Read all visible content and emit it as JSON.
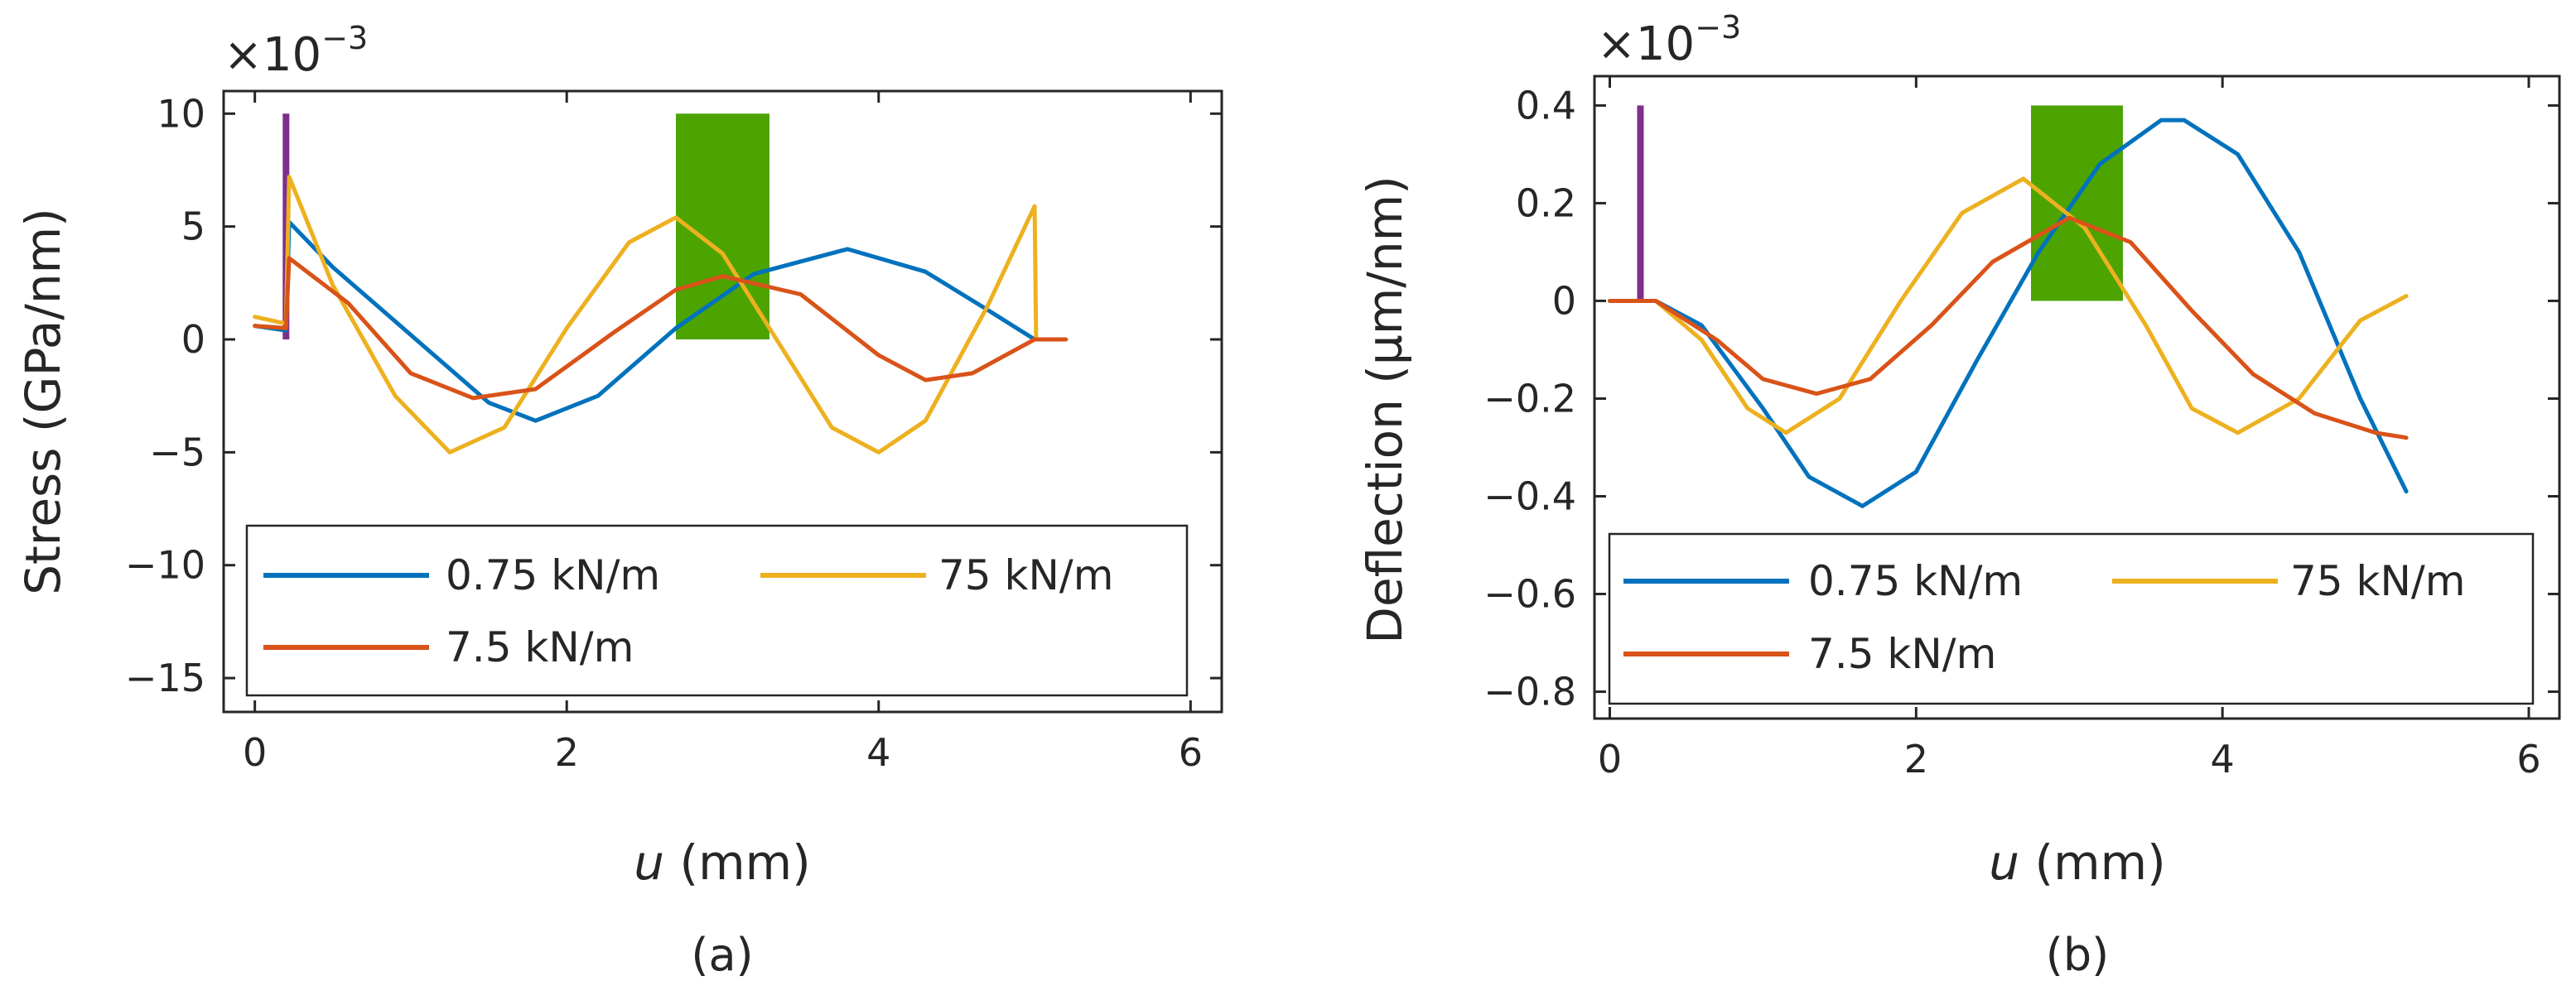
{
  "colors": {
    "blue": "#0072BD",
    "orange": "#D95319",
    "yellow": "#EDB120",
    "purple": "#7E2F8E",
    "green": "#4DA300",
    "axis": "#262626"
  },
  "chart_data": [
    {
      "type": "line",
      "subplot_label": "(a)",
      "xlabel_var": "u",
      "xlabel_unit": " (mm)",
      "ylabel": "Stress (GPa/nm)",
      "multiplier_base": "×10",
      "multiplier_exp": "−3",
      "xlim": [
        -0.2,
        6.2
      ],
      "ylim": [
        -16.5,
        11
      ],
      "xticks": [
        0,
        2,
        4,
        6
      ],
      "xtick_labels": [
        "0",
        "2",
        "4",
        "6"
      ],
      "yticks": [
        10,
        5,
        0,
        -5,
        -10,
        -15
      ],
      "ytick_labels": [
        "10",
        "5",
        "0",
        "−5",
        "−10",
        "−15"
      ],
      "legend": {
        "entries": [
          "0.75 kN/m",
          "75 kN/m",
          "7.5 kN/m"
        ],
        "placement": "bottom"
      },
      "markers": [
        {
          "kind": "bar",
          "color": "purple",
          "x": 0.2,
          "y0": 0,
          "y1": 10
        },
        {
          "kind": "rect",
          "color": "green",
          "x0": 2.7,
          "x1": 3.3,
          "y0": 0,
          "y1": 10
        }
      ],
      "series": [
        {
          "name": "0.75 kN/m",
          "color": "blue",
          "x": [
            0,
            0.2,
            0.22,
            0.5,
            1.0,
            1.5,
            1.8,
            2.2,
            2.7,
            3.2,
            3.8,
            4.3,
            4.7,
            5.0,
            5.2
          ],
          "y": [
            0.6,
            0.4,
            5.2,
            3.2,
            0.2,
            -2.8,
            -3.6,
            -2.5,
            0.5,
            2.9,
            4.0,
            3.0,
            1.3,
            0.0,
            0.0
          ]
        },
        {
          "name": "75 kN/m",
          "color": "yellow",
          "x": [
            0,
            0.2,
            0.22,
            0.5,
            0.9,
            1.25,
            1.6,
            2.0,
            2.4,
            2.7,
            3.0,
            3.3,
            3.7,
            4.0,
            4.3,
            4.7,
            5.0,
            5.01,
            5.2
          ],
          "y": [
            1.0,
            0.7,
            7.2,
            2.4,
            -2.5,
            -5.0,
            -3.9,
            0.5,
            4.3,
            5.4,
            3.8,
            0.5,
            -3.9,
            -5.0,
            -3.6,
            1.5,
            5.9,
            0.0,
            0.0
          ]
        },
        {
          "name": "7.5 kN/m",
          "color": "orange",
          "x": [
            0,
            0.2,
            0.22,
            0.6,
            1.0,
            1.4,
            1.8,
            2.3,
            2.7,
            3.0,
            3.5,
            4.0,
            4.3,
            4.6,
            5.0,
            5.2
          ],
          "y": [
            0.6,
            0.5,
            3.6,
            1.6,
            -1.5,
            -2.6,
            -2.2,
            0.3,
            2.2,
            2.8,
            2.0,
            -0.7,
            -1.8,
            -1.5,
            0.0,
            0.0
          ]
        }
      ]
    },
    {
      "type": "line",
      "subplot_label": "(b)",
      "xlabel_var": "u",
      "xlabel_unit": " (mm)",
      "ylabel": "Deflection (µm/nm)",
      "multiplier_base": "×10",
      "multiplier_exp": "−3",
      "xlim": [
        -0.1,
        6.2
      ],
      "ylim": [
        -0.855,
        0.46
      ],
      "xticks": [
        0,
        2,
        4,
        6
      ],
      "xtick_labels": [
        "0",
        "2",
        "4",
        "6"
      ],
      "yticks": [
        0.4,
        0.2,
        0,
        -0.2,
        -0.4,
        -0.6,
        -0.8
      ],
      "ytick_labels": [
        "0.4",
        "0.2",
        "0",
        "−0.2",
        "−0.4",
        "−0.6",
        "−0.8"
      ],
      "legend": {
        "entries": [
          "0.75 kN/m",
          "75 kN/m",
          "7.5 kN/m"
        ],
        "placement": "bottom"
      },
      "markers": [
        {
          "kind": "bar",
          "color": "purple",
          "x": 0.2,
          "y0": 0,
          "y1": 0.4
        },
        {
          "kind": "rect",
          "color": "green",
          "x0": 2.75,
          "x1": 3.35,
          "y0": 0,
          "y1": 0.4
        }
      ],
      "series": [
        {
          "name": "0.75 kN/m",
          "color": "blue",
          "x": [
            0,
            0.3,
            0.6,
            1.0,
            1.3,
            1.65,
            2.0,
            2.4,
            2.8,
            3.2,
            3.6,
            3.75,
            4.1,
            4.5,
            4.9,
            5.2
          ],
          "y": [
            0.0,
            0.0,
            -0.05,
            -0.22,
            -0.36,
            -0.42,
            -0.35,
            -0.12,
            0.1,
            0.28,
            0.37,
            0.37,
            0.3,
            0.1,
            -0.2,
            -0.39
          ]
        },
        {
          "name": "75 kN/m",
          "color": "yellow",
          "x": [
            0,
            0.3,
            0.6,
            0.9,
            1.15,
            1.5,
            1.9,
            2.3,
            2.7,
            3.1,
            3.5,
            3.8,
            4.1,
            4.5,
            4.9,
            5.2
          ],
          "y": [
            0.0,
            0.0,
            -0.08,
            -0.22,
            -0.27,
            -0.2,
            0.0,
            0.18,
            0.25,
            0.15,
            -0.05,
            -0.22,
            -0.27,
            -0.2,
            -0.04,
            0.01
          ]
        },
        {
          "name": "7.5 kN/m",
          "color": "orange",
          "x": [
            0,
            0.3,
            0.7,
            1.0,
            1.35,
            1.7,
            2.1,
            2.5,
            3.0,
            3.4,
            3.8,
            4.2,
            4.6,
            5.0,
            5.2
          ],
          "y": [
            0.0,
            0.0,
            -0.08,
            -0.16,
            -0.19,
            -0.16,
            -0.05,
            0.08,
            0.17,
            0.12,
            -0.02,
            -0.15,
            -0.23,
            -0.27,
            -0.28
          ]
        }
      ]
    }
  ]
}
